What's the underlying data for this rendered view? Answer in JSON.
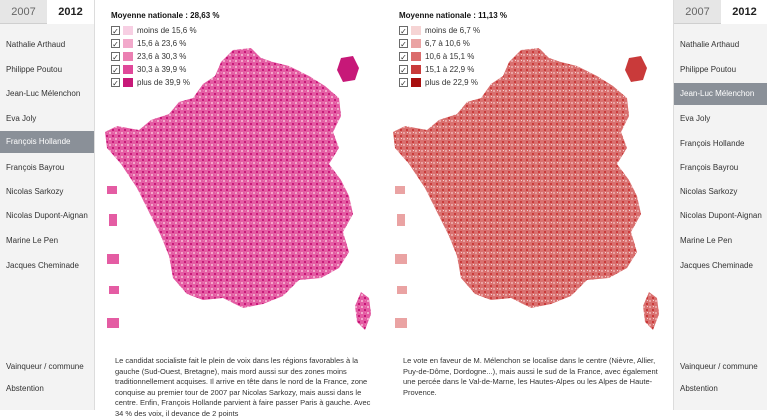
{
  "left_nav": {
    "years": [
      "2007",
      "2012"
    ],
    "active_year": "2012",
    "candidates": [
      "Nathalie Arthaud",
      "Philippe Poutou",
      "Jean-Luc Mélenchon",
      "Eva Joly",
      "François Hollande",
      "François Bayrou",
      "Nicolas Sarkozy",
      "Nicolas Dupont-Aignan",
      "Marine Le Pen",
      "Jacques Cheminade"
    ],
    "selected": "François Hollande",
    "extra": [
      "Vainqueur / commune",
      "Abstention"
    ]
  },
  "right_nav": {
    "years": [
      "2007",
      "2012"
    ],
    "active_year": "2012",
    "candidates": [
      "Nathalie Arthaud",
      "Philippe Poutou",
      "Jean-Luc Mélenchon",
      "Eva Joly",
      "François Hollande",
      "François Bayrou",
      "Nicolas Sarkozy",
      "Nicolas Dupont-Aignan",
      "Marine Le Pen",
      "Jacques Cheminade"
    ],
    "selected": "Jean-Luc Mélenchon",
    "extra": [
      "Vainqueur / commune",
      "Abstention"
    ]
  },
  "left_map": {
    "title": "Moyenne nationale : 28,63 %",
    "legend": [
      {
        "label": "moins de 15,6 %",
        "color": "#f7cfe3"
      },
      {
        "label": "15,6 à 23,6 %",
        "color": "#f2a9cb"
      },
      {
        "label": "23,6 à 30,3 %",
        "color": "#eb7fb2"
      },
      {
        "label": "30,3 à 39,9 %",
        "color": "#e0489a"
      },
      {
        "label": "plus de 39,9 %",
        "color": "#c71878"
      }
    ],
    "fill_color": "#e45ca3",
    "description": "Le candidat socialiste fait le plein de voix dans les régions favorables à la gauche (Sud-Ouest, Bretagne), mais mord aussi sur des zones moins traditionnellement acquises. Il arrive en tête dans le nord de la France, zone conquise au premier tour de 2007 par Nicolas Sarkozy, mais aussi dans le centre. Enfin, François Hollande parvient à faire passer Paris à gauche. Avec 34 % des voix, il devance de 2 points"
  },
  "right_map": {
    "title": "Moyenne nationale : 11,13 %",
    "legend": [
      {
        "label": "moins de 6,7 %",
        "color": "#f6d4d4"
      },
      {
        "label": "6,7 à 10,6 %",
        "color": "#eaa3a3"
      },
      {
        "label": "10,6 à 15,1 %",
        "color": "#db6c6c"
      },
      {
        "label": "15,1 à 22,9 %",
        "color": "#c93a3a"
      },
      {
        "label": "plus de 22,9 %",
        "color": "#a80f0f"
      }
    ],
    "fill_color": "#d9706f",
    "description": "Le vote en faveur de M. Mélenchon se localise dans le centre (Nièvre, Allier, Puy-de-Dôme, Dordogne...), mais aussi le sud de la France, avec également une percée dans le Val-de-Marne, les Hautes-Alpes ou les Alpes de Haute-Provence."
  }
}
